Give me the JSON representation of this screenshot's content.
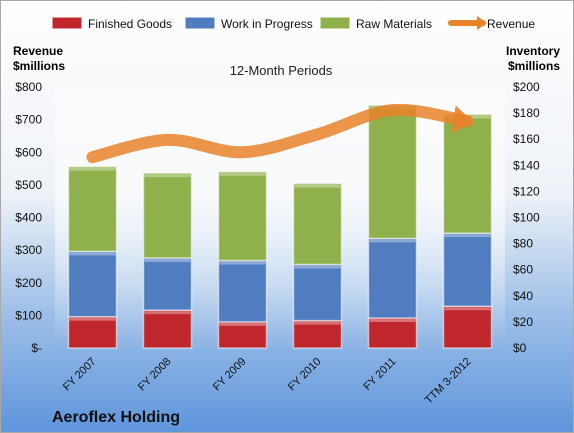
{
  "chart_data": {
    "type": "bar",
    "title": "12-Month Periods",
    "company": "Aeroflex Holding",
    "left_axis_label": [
      "Revenue",
      "$millions"
    ],
    "right_axis_label": [
      "Inventory",
      "$millions"
    ],
    "categories": [
      "FY 2007",
      "FY 2008",
      "FY 2009",
      "FY 2010",
      "FY 2011",
      "TTM 3-2012"
    ],
    "left_ticks": [
      "$-",
      "$100",
      "$200",
      "$300",
      "$400",
      "$500",
      "$600",
      "$700",
      "$800"
    ],
    "right_ticks": [
      "$0",
      "$20",
      "$40",
      "$60",
      "$80",
      "$100",
      "$120",
      "$140",
      "$160",
      "$180",
      "$200"
    ],
    "left_ylim": [
      0,
      800
    ],
    "right_ylim": [
      0,
      200
    ],
    "stacked": true,
    "series": [
      {
        "name": "Finished Goods",
        "axis": "right",
        "color": "#c0272d",
        "values": [
          24,
          29,
          20,
          21,
          23,
          32
        ]
      },
      {
        "name": "Work in Progress",
        "axis": "right",
        "color": "#4f7dbf",
        "values": [
          50,
          40,
          47,
          43,
          61,
          56
        ]
      },
      {
        "name": "Raw Materials",
        "axis": "right",
        "color": "#8fb04a",
        "values": [
          65,
          65,
          68,
          62,
          102,
          91
        ]
      },
      {
        "name": "Revenue",
        "axis": "left",
        "type": "line",
        "color": "#e8832a",
        "values": [
          585,
          638,
          600,
          655,
          729,
          695
        ]
      }
    ],
    "legend_position": "top",
    "grid": false
  }
}
